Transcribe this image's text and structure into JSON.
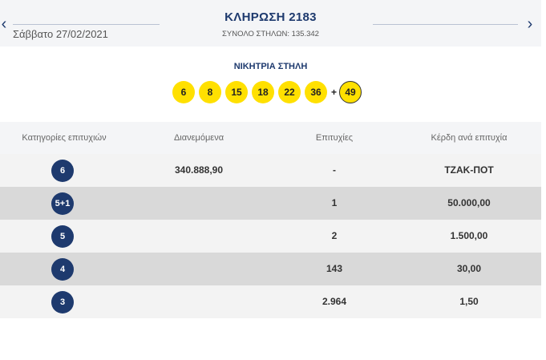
{
  "header": {
    "draw_title": "ΚΛΗΡΩΣΗ 2183",
    "date": "Σάββατο 27/02/2021",
    "total_columns": "ΣΥΝΟΛΟ ΣΤΗΛΩΝ: 135.342",
    "prev_icon": "chevron-left-icon",
    "next_icon": "chevron-right-icon"
  },
  "winning": {
    "title": "ΝΙΚΗΤΡΙΑ ΣΤΗΛΗ",
    "numbers": [
      "6",
      "8",
      "15",
      "18",
      "22",
      "36"
    ],
    "plus": "+",
    "bonus": "49",
    "ball_color": "#ffe000"
  },
  "table": {
    "headers": [
      "Κατηγορίες επιτυχιών",
      "Διανεμόμενα",
      "Επιτυχίες",
      "Κέρδη ανά επιτυχία"
    ],
    "rows": [
      {
        "category": "6",
        "distributed": "340.888,90",
        "winners": "-",
        "prize": "ΤΖΑΚ-ΠΟΤ"
      },
      {
        "category": "5+1",
        "distributed": "",
        "winners": "1",
        "prize": "50.000,00"
      },
      {
        "category": "5",
        "distributed": "",
        "winners": "2",
        "prize": "1.500,00"
      },
      {
        "category": "4",
        "distributed": "",
        "winners": "143",
        "prize": "30,00"
      },
      {
        "category": "3",
        "distributed": "",
        "winners": "2.964",
        "prize": "1,50"
      }
    ]
  },
  "colors": {
    "accent": "#1e3a6e",
    "row_light": "#f3f3f3",
    "row_dark": "#d9d9d9"
  }
}
